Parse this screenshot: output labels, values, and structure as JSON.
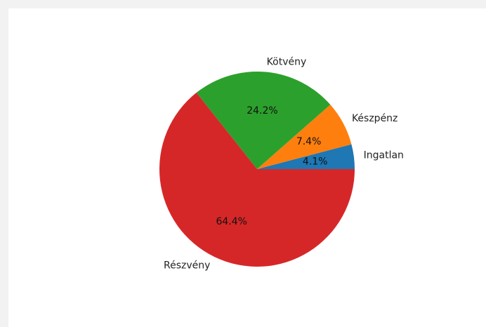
{
  "chart_data": {
    "type": "pie",
    "title": "",
    "start_angle_deg": 0,
    "direction": "counterclockwise",
    "slices": [
      {
        "label": "Ingatlan",
        "value": 4.1,
        "pct_text": "4.1%",
        "color": "#1f77b4"
      },
      {
        "label": "Készpénz",
        "value": 7.4,
        "pct_text": "7.4%",
        "color": "#ff7f0e"
      },
      {
        "label": "Kötvény",
        "value": 24.2,
        "pct_text": "24.2%",
        "color": "#2ca02c"
      },
      {
        "label": "Részvény",
        "value": 64.4,
        "pct_text": "64.4%",
        "color": "#d62728"
      }
    ]
  }
}
